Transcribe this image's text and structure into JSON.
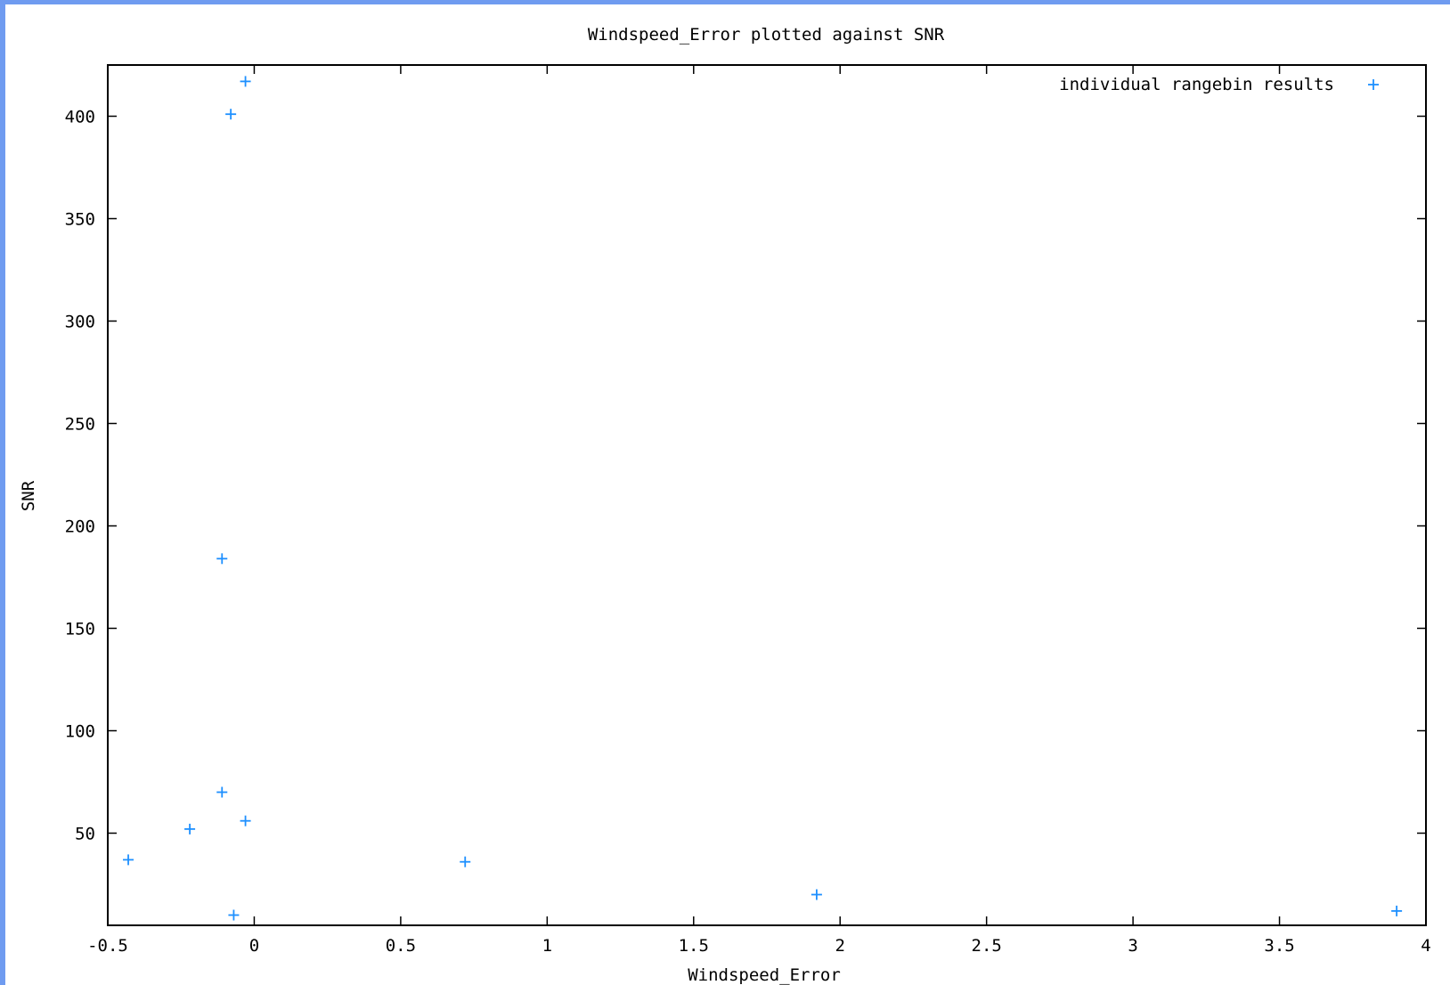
{
  "chart_data": {
    "type": "scatter",
    "title": "Windspeed_Error plotted against SNR",
    "xlabel": "Windspeed_Error",
    "ylabel": "SNR",
    "xlim": [
      -0.5,
      4
    ],
    "ylim": [
      5,
      425
    ],
    "xticks": [
      -0.5,
      0,
      0.5,
      1,
      1.5,
      2,
      2.5,
      3,
      3.5,
      4
    ],
    "xtick_labels": [
      "-0.5",
      "0",
      "0.5",
      "1",
      "1.5",
      "2",
      "2.5",
      "3",
      "3.5",
      "4"
    ],
    "yticks": [
      50,
      100,
      150,
      200,
      250,
      300,
      350,
      400
    ],
    "ytick_labels": [
      "50",
      "100",
      "150",
      "200",
      "250",
      "300",
      "350",
      "400"
    ],
    "legend_position": "top-right",
    "series": [
      {
        "name": "individual rangebin results",
        "color": "#1e90ff",
        "marker": "plus",
        "points": [
          {
            "x": -0.03,
            "y": 417
          },
          {
            "x": -0.08,
            "y": 401
          },
          {
            "x": -0.11,
            "y": 184
          },
          {
            "x": -0.11,
            "y": 70
          },
          {
            "x": -0.22,
            "y": 52
          },
          {
            "x": -0.03,
            "y": 56
          },
          {
            "x": -0.43,
            "y": 37
          },
          {
            "x": 0.72,
            "y": 36
          },
          {
            "x": -0.07,
            "y": 10
          },
          {
            "x": 1.92,
            "y": 20
          },
          {
            "x": 3.9,
            "y": 12
          }
        ]
      }
    ]
  }
}
